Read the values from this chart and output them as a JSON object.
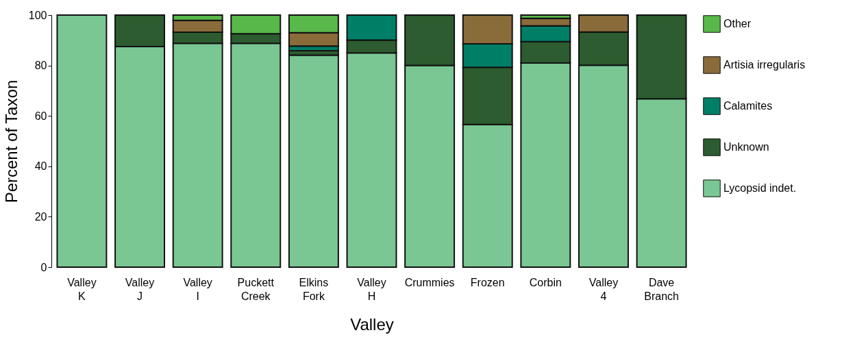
{
  "chart_data": {
    "type": "bar",
    "stacked": true,
    "xlabel": "Valley",
    "ylabel": "Percent of Taxon",
    "ylim": [
      0,
      100
    ],
    "yticks": [
      0,
      20,
      40,
      60,
      80,
      100
    ],
    "grid": false,
    "legend": "right",
    "categories": [
      "Valley K",
      "Valley J",
      "Valley I",
      "Puckett Creek",
      "Elkins Fork",
      "Valley H",
      "Crummies",
      "Frozen",
      "Corbin",
      "Valley 4",
      "Dave Branch"
    ],
    "series": [
      {
        "name": "Lycopsid indet.",
        "color": "#7ac793",
        "values": [
          100,
          87.5,
          88.8,
          88.8,
          84.1,
          85.0,
          80.0,
          56.6,
          81.0,
          80.1,
          66.8
        ]
      },
      {
        "name": "Unknown",
        "color": "#2c5c2f",
        "values": [
          null,
          12.5,
          4.4,
          3.8,
          1.8,
          5.1,
          20.0,
          22.7,
          8.5,
          13.2,
          33.2
        ]
      },
      {
        "name": "Calamites",
        "color": "#007f67",
        "values": [
          null,
          null,
          null,
          null,
          1.8,
          9.9,
          null,
          9.3,
          6.2,
          null,
          null
        ]
      },
      {
        "name": "Artisia irregularis",
        "color": "#8a6b3a",
        "values": [
          null,
          null,
          4.7,
          null,
          5.3,
          null,
          null,
          11.4,
          3.0,
          6.7,
          null
        ]
      },
      {
        "name": "Other",
        "color": "#58b84a",
        "values": [
          null,
          null,
          2.1,
          7.4,
          7.0,
          null,
          null,
          null,
          1.3,
          null,
          null
        ]
      }
    ]
  }
}
